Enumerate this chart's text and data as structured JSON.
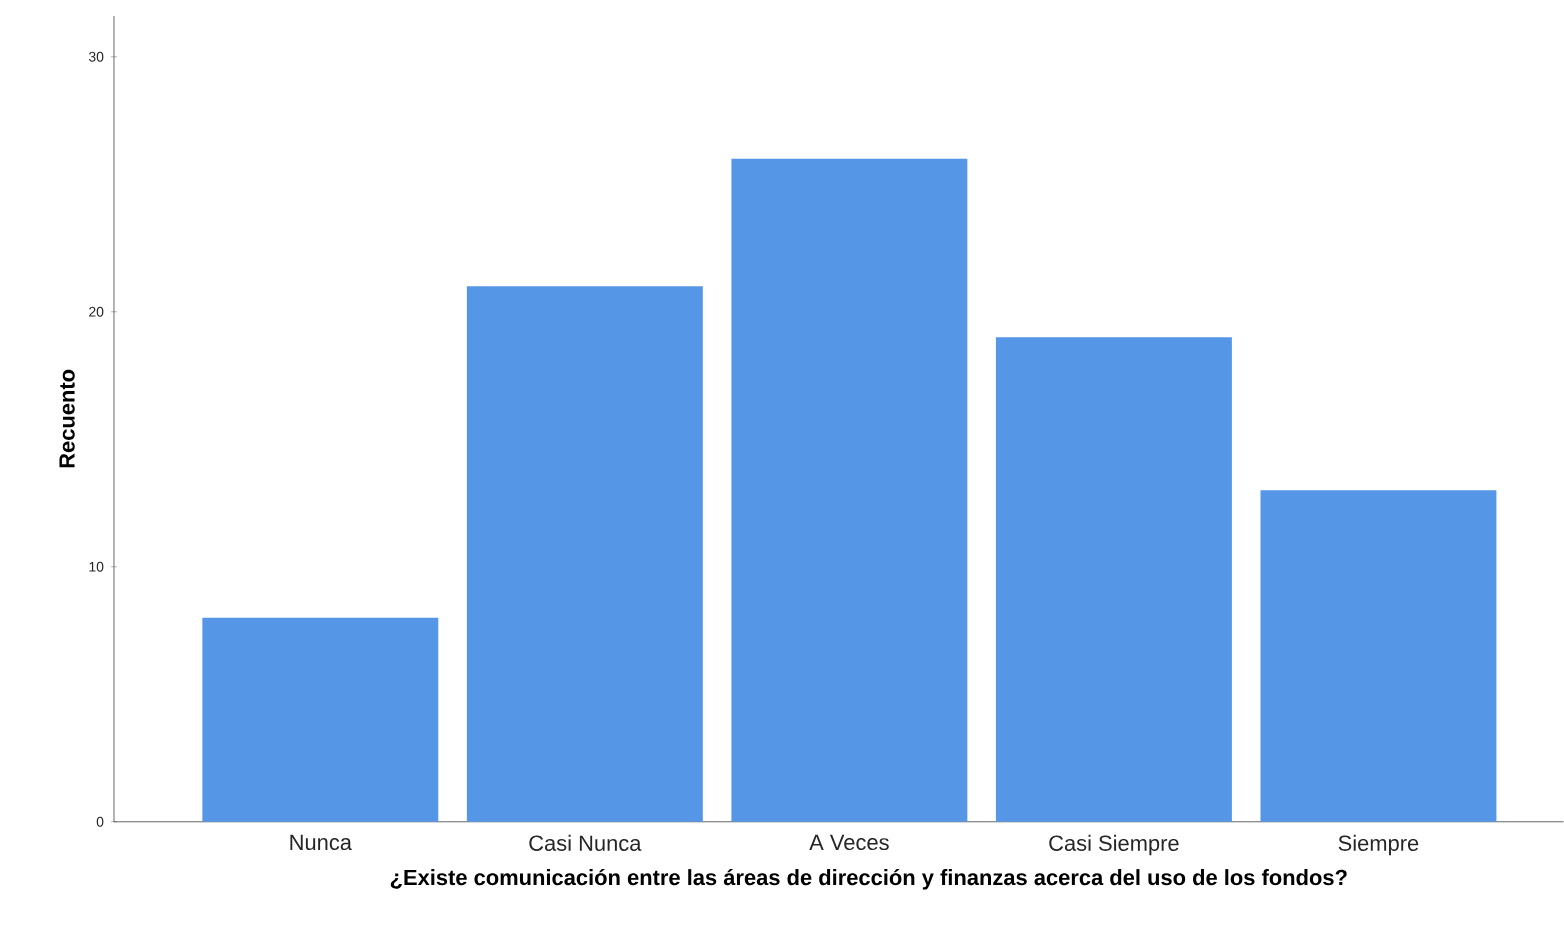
{
  "chart_data": {
    "type": "bar",
    "xlabel": "¿Existe comunicación entre las áreas de dirección y finanzas acerca del uso de los fondos?",
    "ylabel": "Recuento",
    "categories": [
      "Nunca",
      "Casi Nunca",
      "A Veces",
      "Casi Siempre",
      "Siempre"
    ],
    "values": [
      8,
      21,
      26,
      19,
      13
    ],
    "color": "#5596e6",
    "ylim": [
      0,
      31.6
    ],
    "yticks": [
      0,
      10,
      20,
      30
    ]
  }
}
